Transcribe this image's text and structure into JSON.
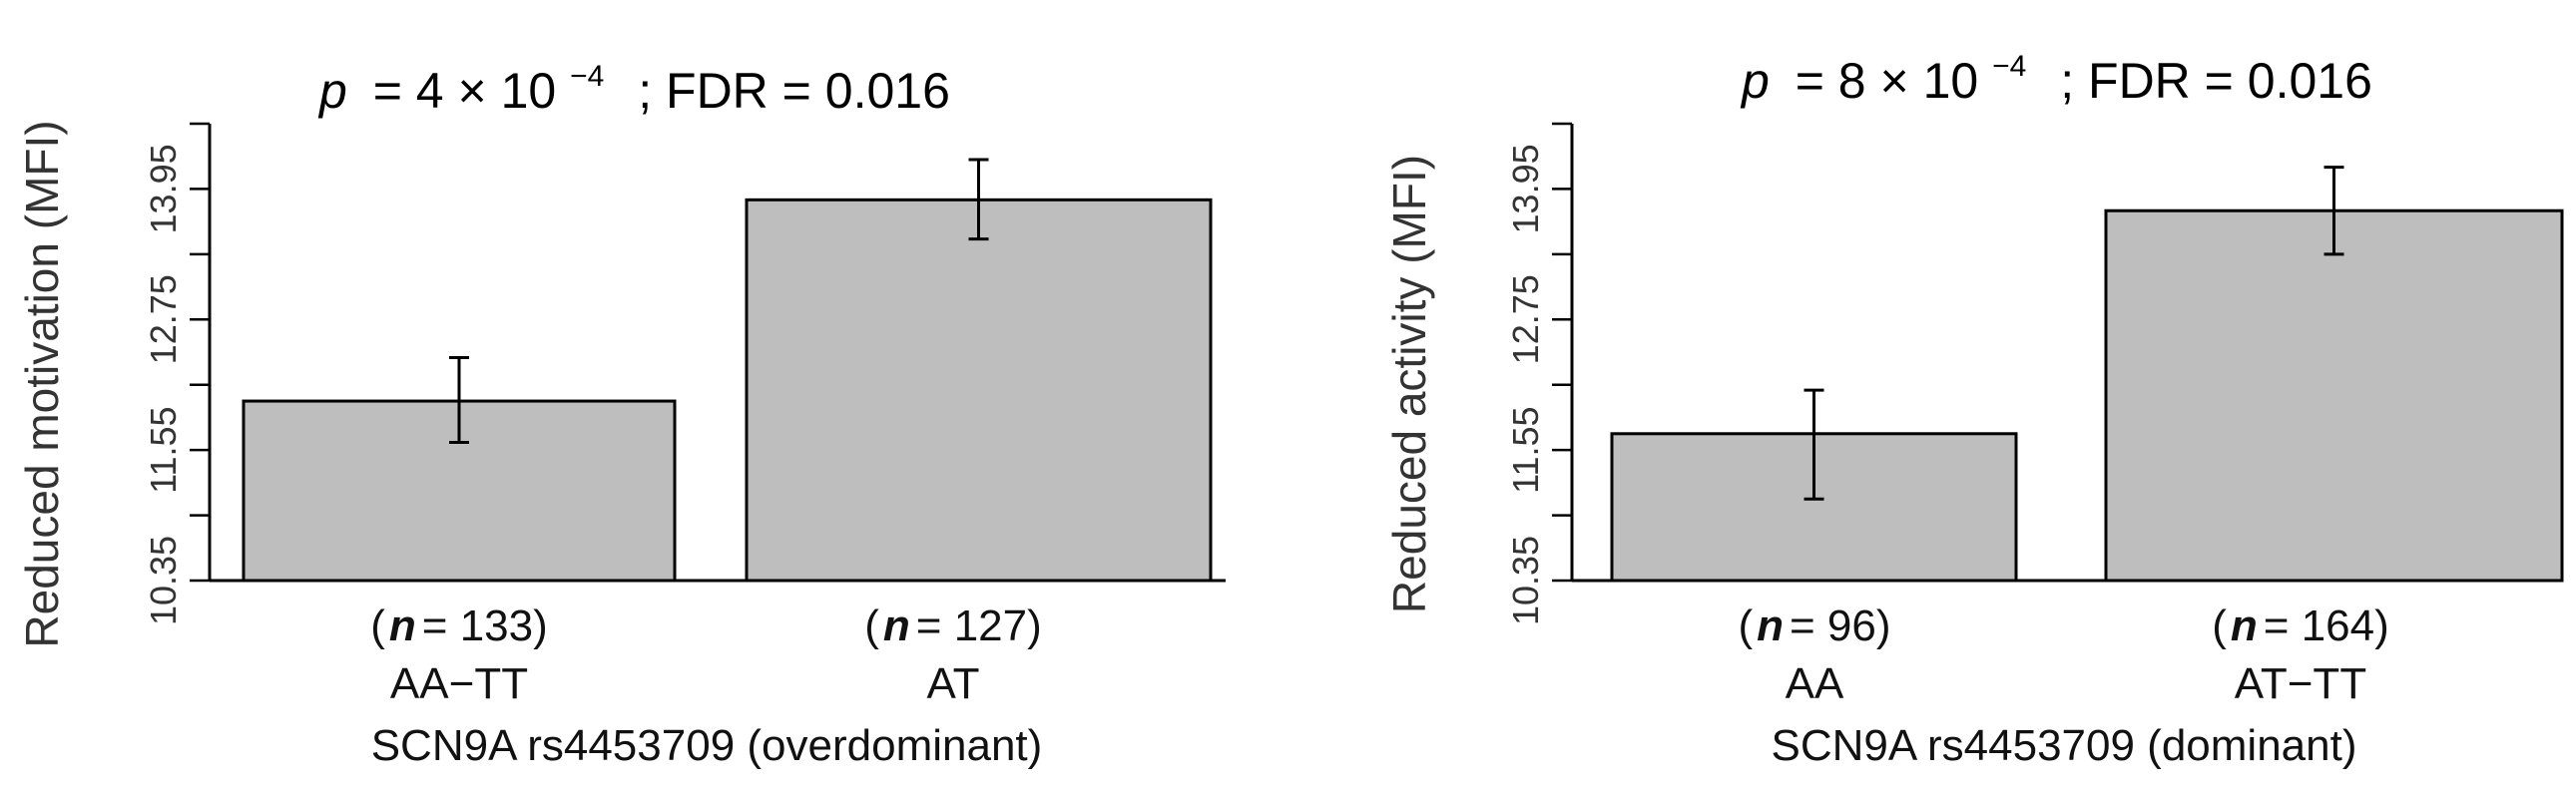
{
  "chart_data": [
    {
      "type": "bar",
      "title_p": "p",
      "title_rest": "= 4 × 10",
      "title_exp": "−4",
      "title_fdr": "; FDR = 0.016",
      "ylabel": "Reduced motivation (MFI)",
      "xlabel": "SCN9A rs4453709 (overdominant)",
      "yticks": [
        "10.35",
        "11.55",
        "12.75",
        "13.95"
      ],
      "ylim": [
        10.35,
        14.55
      ],
      "categories": [
        "AA−TT",
        "AT"
      ],
      "n_prefix": "(",
      "n_symbol": "n",
      "n_values": [
        "= 133)",
        "= 127)"
      ],
      "values": [
        12.0,
        13.85
      ],
      "err_low": [
        11.62,
        13.49
      ],
      "err_high": [
        12.4,
        14.22
      ],
      "bar_color": "#bebebe"
    },
    {
      "type": "bar",
      "title_p": "p",
      "title_rest": "= 8 × 10",
      "title_exp": "−4",
      "title_fdr": "; FDR = 0.016",
      "ylabel": "Reduced activity (MFI)",
      "xlabel": "SCN9A rs4453709 (dominant)",
      "yticks": [
        "10.35",
        "11.55",
        "12.75",
        "13.95"
      ],
      "ylim": [
        10.35,
        14.55
      ],
      "categories": [
        "AA",
        "AT−TT"
      ],
      "n_prefix": "(",
      "n_symbol": "n",
      "n_values": [
        "= 96)",
        "= 164)"
      ],
      "values": [
        11.7,
        13.75
      ],
      "err_low": [
        11.1,
        13.35
      ],
      "err_high": [
        12.1,
        14.15
      ],
      "bar_color": "#bebebe"
    }
  ]
}
